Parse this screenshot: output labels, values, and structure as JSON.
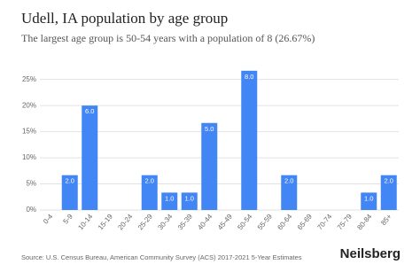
{
  "chart_data": {
    "type": "bar",
    "title": "Udell, IA population by age group",
    "subtitle": "The largest age group is 50-54 years with a population of 8 (26.67%)",
    "categories": [
      "0-4",
      "5-9",
      "10-14",
      "15-19",
      "20-24",
      "25-29",
      "30-34",
      "35-39",
      "40-44",
      "45-49",
      "50-54",
      "55-59",
      "60-64",
      "65-69",
      "70-74",
      "75-79",
      "80-84",
      "85+"
    ],
    "values": [
      0,
      6.67,
      20,
      0,
      0,
      6.67,
      3.33,
      3.33,
      16.67,
      0,
      26.67,
      0,
      6.67,
      0,
      0,
      0,
      3.33,
      6.67
    ],
    "data_labels": [
      null,
      "2.0",
      "6.0",
      null,
      null,
      "2.0",
      "1.0",
      "1.0",
      "5.0",
      null,
      "8.0",
      null,
      "2.0",
      null,
      null,
      null,
      "1.0",
      "2.0"
    ],
    "color": "#4285f4",
    "ylim": [
      0,
      28
    ],
    "yticks": [
      {
        "value": 0,
        "label": "0%"
      },
      {
        "value": 5,
        "label": "5%"
      },
      {
        "value": 10,
        "label": "10%"
      },
      {
        "value": 15,
        "label": "15%"
      },
      {
        "value": 20,
        "label": "20%"
      },
      {
        "value": 25,
        "label": "25%"
      }
    ],
    "grid": true,
    "source": "Source: U.S. Census Bureau, American Community Survey (ACS) 2017-2021 5-Year Estimates",
    "brand": "Neilsberg"
  }
}
